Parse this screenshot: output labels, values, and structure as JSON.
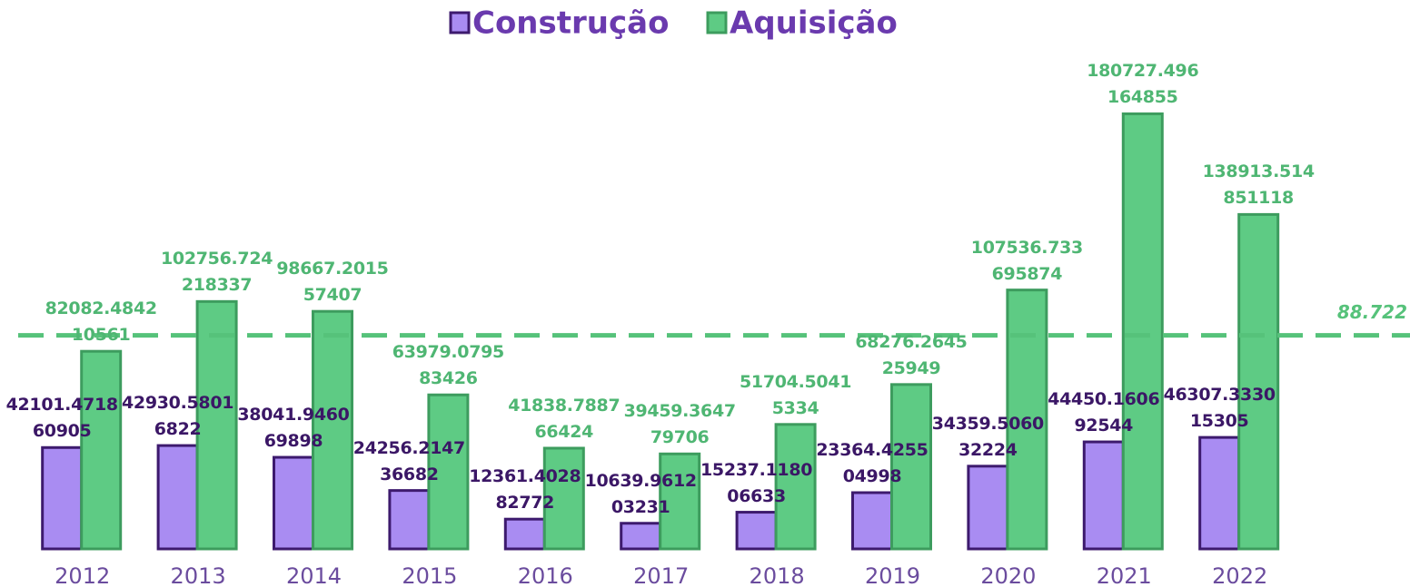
{
  "chart_data": {
    "type": "bar",
    "categories": [
      "2012",
      "2013",
      "2014",
      "2015",
      "2016",
      "2017",
      "2018",
      "2019",
      "2020",
      "2021",
      "2022"
    ],
    "series": [
      {
        "name": "Construção",
        "color": "#a98cf2",
        "edge": "#3d1a6e",
        "label_color": "#3b1766",
        "values": [
          42101.471860905,
          42930.58016822,
          38041.946069898,
          24256.214736682,
          12361.402882772,
          10639.961203231,
          15237.118006633,
          23364.425504998,
          34359.506032224,
          44450.160692544,
          46307.333015305
        ]
      },
      {
        "name": "Aquisição",
        "color": "#5ecb84",
        "edge": "#3d9c5e",
        "label_color": "#4fb673",
        "values": [
          82082.484210561,
          102756.724218337,
          98667.201557407,
          63979.079583426,
          41838.788766424,
          39459.364779706,
          51704.50415334,
          68276.264525949,
          107536.733695874,
          180727.496164855,
          138913.514851118
        ]
      }
    ],
    "reference_line": {
      "value": 88722,
      "label": "88.722",
      "color": "#56c27a"
    },
    "ylim": [
      0,
      228000
    ],
    "legend": "top"
  }
}
